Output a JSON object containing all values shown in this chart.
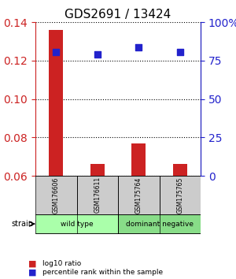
{
  "title": "GDS2691 / 13424",
  "samples": [
    "GSM176606",
    "GSM176611",
    "GSM175764",
    "GSM175765"
  ],
  "log10_ratio": [
    0.136,
    0.066,
    0.077,
    0.066
  ],
  "percentile_rank": [
    0.808,
    0.792,
    0.836,
    0.804
  ],
  "groups": [
    {
      "label": "wild type",
      "samples": [
        0,
        1
      ],
      "color": "#aaffaa"
    },
    {
      "label": "dominant negative",
      "samples": [
        2,
        3
      ],
      "color": "#88dd88"
    }
  ],
  "strain_label": "strain",
  "ylim_left": [
    0.06,
    0.14
  ],
  "ylim_right": [
    0.0,
    1.0
  ],
  "yticks_left": [
    0.06,
    0.08,
    0.1,
    0.12,
    0.14
  ],
  "yticks_right": [
    0.0,
    0.25,
    0.5,
    0.75,
    1.0
  ],
  "ytick_labels_right": [
    "0",
    "25",
    "50",
    "75",
    "100%"
  ],
  "bar_color": "#cc2222",
  "dot_color": "#2222cc",
  "bar_width": 0.35,
  "legend_bar_label": "log10 ratio",
  "legend_dot_label": "percentile rank within the sample",
  "grid_color": "#000000",
  "sample_box_color": "#cccccc",
  "left_axis_color": "#cc2222",
  "right_axis_color": "#2222cc"
}
